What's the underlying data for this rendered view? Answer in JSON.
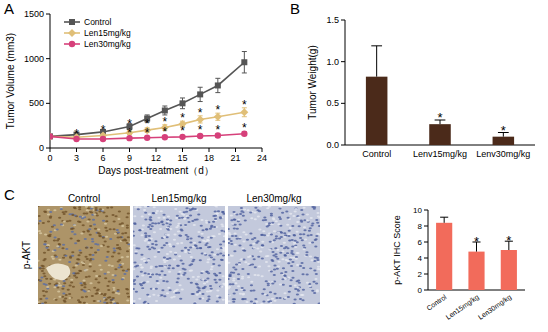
{
  "chart_data": [
    {
      "type": "line",
      "panel_label": "A",
      "x_label": "Days post-treatment（d）",
      "y_label": "Tumor Volume (mm3)",
      "x": [
        0,
        3,
        6,
        9,
        11,
        13,
        15,
        17,
        19,
        22
      ],
      "xlim": [
        0,
        24
      ],
      "xticks": [
        0,
        3,
        6,
        9,
        12,
        15,
        18,
        21,
        24
      ],
      "ylim": [
        0,
        1500
      ],
      "yticks": [
        0,
        500,
        1000,
        1500
      ],
      "legend": "top-left",
      "series": [
        {
          "name": "Control",
          "color": "#555555",
          "marker": "square",
          "values": [
            130,
            150,
            180,
            240,
            330,
            420,
            500,
            600,
            700,
            960
          ],
          "errors": [
            0,
            10,
            15,
            30,
            40,
            50,
            60,
            80,
            80,
            120
          ]
        },
        {
          "name": "Len15mg/kg",
          "color": "#e0bf78",
          "marker": "diamond",
          "values": [
            130,
            120,
            140,
            170,
            200,
            230,
            270,
            320,
            350,
            400
          ],
          "errors": [
            0,
            10,
            15,
            20,
            25,
            30,
            30,
            40,
            40,
            50
          ]
        },
        {
          "name": "Len30mg/kg",
          "color": "#d6407a",
          "marker": "circle",
          "values": [
            130,
            100,
            100,
            110,
            115,
            120,
            125,
            135,
            140,
            160
          ],
          "errors": [
            0,
            10,
            10,
            10,
            10,
            10,
            15,
            15,
            15,
            20
          ]
        }
      ],
      "annotations": [
        {
          "text": "*",
          "x": 3,
          "y": 190
        },
        {
          "text": "*",
          "x": 6,
          "y": 230
        },
        {
          "text": "*",
          "x": 9,
          "y": 300
        },
        {
          "text": "*",
          "x": 9,
          "y": 200
        },
        {
          "text": "*",
          "x": 11,
          "y": 300
        },
        {
          "text": "*",
          "x": 11,
          "y": 200
        },
        {
          "text": "*",
          "x": 13,
          "y": 330
        },
        {
          "text": "*",
          "x": 13,
          "y": 210
        },
        {
          "text": "*",
          "x": 15,
          "y": 370
        },
        {
          "text": "*",
          "x": 15,
          "y": 220
        },
        {
          "text": "*",
          "x": 17,
          "y": 430
        },
        {
          "text": "*",
          "x": 17,
          "y": 230
        },
        {
          "text": "*",
          "x": 19,
          "y": 460
        },
        {
          "text": "*",
          "x": 19,
          "y": 240
        },
        {
          "text": "*",
          "x": 22,
          "y": 520
        },
        {
          "text": "*",
          "x": 22,
          "y": 260
        }
      ]
    },
    {
      "type": "bar",
      "panel_label": "B",
      "y_label": "Tumor Weight(g)",
      "categories": [
        "Control",
        "Lenv15mg/kg",
        "Lenv30mg/kg"
      ],
      "values": [
        0.82,
        0.25,
        0.1
      ],
      "errors": [
        0.37,
        0.05,
        0.05
      ],
      "color": "#4b2a1a",
      "ylim": [
        0,
        1.5
      ],
      "yticks": [
        {
          "value": 0,
          "label": "0.0"
        },
        {
          "value": 0.5,
          "label": "0.5"
        },
        {
          "value": 1,
          "label": "1.0"
        },
        {
          "value": 1.5,
          "label": "1.5"
        }
      ],
      "annotations": [
        {
          "text": "*",
          "category": "Lenv15mg/kg",
          "y": 0.36
        },
        {
          "text": "*",
          "category": "Lenv30mg/kg",
          "y": 0.21
        }
      ]
    },
    {
      "type": "image_panel",
      "panel_label": "C",
      "row_label": "p-AKT",
      "images": [
        "Control",
        "Len15mg/kg",
        "Len30mg/kg"
      ]
    },
    {
      "type": "bar",
      "y_label": "p-AKT IHC Score",
      "categories": [
        "Control",
        "Len15mg/kg",
        "Len30mg/kg"
      ],
      "values": [
        8.4,
        4.8,
        5.0
      ],
      "errors": [
        0.7,
        1.2,
        1.1
      ],
      "color": "#f26b5b",
      "ylim": [
        0,
        10
      ],
      "yticks": [
        0,
        2,
        4,
        6,
        8,
        10
      ],
      "annotations": [
        {
          "text": "*",
          "category": "Len15mg/kg",
          "y": 6.4
        },
        {
          "text": "*",
          "category": "Len30mg/kg",
          "y": 6.5
        }
      ]
    }
  ]
}
